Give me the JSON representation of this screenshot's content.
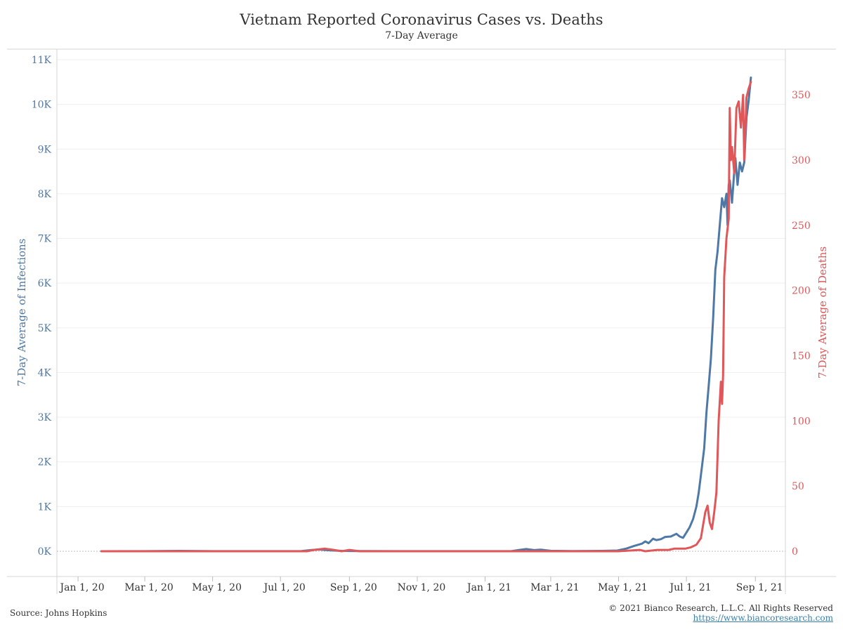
{
  "chart": {
    "title": "Vietnam Reported Coronavirus Cases vs. Deaths",
    "subtitle": "7-Day Average",
    "source": "Source: Johns Hopkins",
    "copyright": "© 2021 Bianco Research, L.L.C. All Rights Reserved",
    "url": "https://www.biancoresearch.com"
  },
  "colors": {
    "cases": "#4e79a7",
    "deaths": "#e15759",
    "axis_left": "#4e79a7",
    "axis_right": "#e15759"
  },
  "chart_data": {
    "type": "line",
    "title": "Vietnam Reported Coronavirus Cases vs. Deaths",
    "subtitle": "7-Day Average",
    "x_type": "date",
    "xlim": [
      "2019-12-13",
      "2021-09-28"
    ],
    "x_ticks": [
      "2020-01-01",
      "2020-03-01",
      "2020-05-01",
      "2020-07-01",
      "2020-09-01",
      "2020-11-01",
      "2021-01-01",
      "2021-03-01",
      "2021-05-01",
      "2021-07-01",
      "2021-09-01"
    ],
    "x_tick_labels": [
      "Jan 1, 20",
      "Mar 1, 20",
      "May 1, 20",
      "Jul 1, 20",
      "Sep 1, 20",
      "Nov 1, 20",
      "Jan 1, 21",
      "Mar 1, 21",
      "May 1, 21",
      "Jul 1, 21",
      "Sep 1, 21"
    ],
    "y_left": {
      "label": "7-Day Average of Infections",
      "lim": [
        0,
        11000
      ],
      "ticks": [
        0,
        1000,
        2000,
        3000,
        4000,
        5000,
        6000,
        7000,
        8000,
        9000,
        10000,
        11000
      ],
      "tick_labels": [
        "0K",
        "1K",
        "2K",
        "3K",
        "4K",
        "5K",
        "6K",
        "7K",
        "8K",
        "9K",
        "10K",
        "11K"
      ]
    },
    "y_right": {
      "label": "7-Day Average of Deaths",
      "lim": [
        0,
        377
      ],
      "ticks": [
        0,
        50,
        100,
        150,
        200,
        250,
        300,
        350
      ],
      "tick_labels": [
        "0",
        "50",
        "100",
        "150",
        "200",
        "250",
        "300",
        "350"
      ]
    },
    "grid": true,
    "series": [
      {
        "key": "cases",
        "axis": "left",
        "points": [
          [
            "2020-01-22",
            0
          ],
          [
            "2020-03-01",
            2
          ],
          [
            "2020-04-01",
            8
          ],
          [
            "2020-05-01",
            2
          ],
          [
            "2020-06-15",
            1
          ],
          [
            "2020-07-20",
            5
          ],
          [
            "2020-07-28",
            25
          ],
          [
            "2020-08-05",
            40
          ],
          [
            "2020-08-15",
            20
          ],
          [
            "2020-08-25",
            8
          ],
          [
            "2020-09-10",
            3
          ],
          [
            "2020-10-15",
            1
          ],
          [
            "2020-12-15",
            2
          ],
          [
            "2021-01-25",
            5
          ],
          [
            "2021-02-01",
            30
          ],
          [
            "2021-02-07",
            50
          ],
          [
            "2021-02-14",
            25
          ],
          [
            "2021-02-20",
            35
          ],
          [
            "2021-03-01",
            10
          ],
          [
            "2021-03-20",
            5
          ],
          [
            "2021-04-15",
            8
          ],
          [
            "2021-04-30",
            15
          ],
          [
            "2021-05-08",
            60
          ],
          [
            "2021-05-15",
            120
          ],
          [
            "2021-05-22",
            170
          ],
          [
            "2021-05-25",
            220
          ],
          [
            "2021-05-28",
            180
          ],
          [
            "2021-06-01",
            280
          ],
          [
            "2021-06-04",
            250
          ],
          [
            "2021-06-08",
            270
          ],
          [
            "2021-06-12",
            320
          ],
          [
            "2021-06-17",
            330
          ],
          [
            "2021-06-22",
            390
          ],
          [
            "2021-06-25",
            330
          ],
          [
            "2021-06-28",
            300
          ],
          [
            "2021-07-01",
            420
          ],
          [
            "2021-07-04",
            540
          ],
          [
            "2021-07-07",
            720
          ],
          [
            "2021-07-10",
            1000
          ],
          [
            "2021-07-12",
            1300
          ],
          [
            "2021-07-14",
            1700
          ],
          [
            "2021-07-17",
            2300
          ],
          [
            "2021-07-19",
            3100
          ],
          [
            "2021-07-21",
            3700
          ],
          [
            "2021-07-23",
            4300
          ],
          [
            "2021-07-25",
            5200
          ],
          [
            "2021-07-27",
            6300
          ],
          [
            "2021-07-29",
            6700
          ],
          [
            "2021-07-31",
            7300
          ],
          [
            "2021-08-02",
            7900
          ],
          [
            "2021-08-04",
            7700
          ],
          [
            "2021-08-06",
            8000
          ],
          [
            "2021-08-07",
            7300
          ],
          [
            "2021-08-08",
            8200
          ],
          [
            "2021-08-09",
            8300
          ],
          [
            "2021-08-11",
            7800
          ],
          [
            "2021-08-13",
            8500
          ],
          [
            "2021-08-14",
            8800
          ],
          [
            "2021-08-16",
            8200
          ],
          [
            "2021-08-18",
            8700
          ],
          [
            "2021-08-20",
            8500
          ],
          [
            "2021-08-22",
            8700
          ],
          [
            "2021-08-24",
            9700
          ],
          [
            "2021-08-26",
            10100
          ],
          [
            "2021-08-28",
            10600
          ]
        ]
      },
      {
        "key": "deaths",
        "axis": "right",
        "points": [
          [
            "2020-01-22",
            0
          ],
          [
            "2020-07-25",
            0
          ],
          [
            "2020-07-31",
            1
          ],
          [
            "2020-08-10",
            2
          ],
          [
            "2020-08-18",
            1
          ],
          [
            "2020-08-25",
            0
          ],
          [
            "2020-09-01",
            1
          ],
          [
            "2020-09-10",
            0
          ],
          [
            "2021-05-01",
            0
          ],
          [
            "2021-05-20",
            1
          ],
          [
            "2021-05-25",
            0
          ],
          [
            "2021-06-05",
            1
          ],
          [
            "2021-06-15",
            1
          ],
          [
            "2021-06-20",
            2
          ],
          [
            "2021-06-30",
            2
          ],
          [
            "2021-07-05",
            3
          ],
          [
            "2021-07-10",
            5
          ],
          [
            "2021-07-14",
            10
          ],
          [
            "2021-07-16",
            20
          ],
          [
            "2021-07-18",
            30
          ],
          [
            "2021-07-20",
            35
          ],
          [
            "2021-07-22",
            22
          ],
          [
            "2021-07-24",
            17
          ],
          [
            "2021-07-26",
            30
          ],
          [
            "2021-07-28",
            45
          ],
          [
            "2021-07-30",
            100
          ],
          [
            "2021-08-01",
            130
          ],
          [
            "2021-08-02",
            113
          ],
          [
            "2021-08-03",
            135
          ],
          [
            "2021-08-04",
            210
          ],
          [
            "2021-08-06",
            240
          ],
          [
            "2021-08-08",
            255
          ],
          [
            "2021-08-09",
            340
          ],
          [
            "2021-08-10",
            300
          ],
          [
            "2021-08-11",
            310
          ],
          [
            "2021-08-13",
            290
          ],
          [
            "2021-08-15",
            340
          ],
          [
            "2021-08-17",
            345
          ],
          [
            "2021-08-19",
            325
          ],
          [
            "2021-08-21",
            350
          ],
          [
            "2021-08-22",
            300
          ],
          [
            "2021-08-24",
            348
          ],
          [
            "2021-08-26",
            355
          ],
          [
            "2021-08-28",
            360
          ]
        ]
      }
    ]
  }
}
